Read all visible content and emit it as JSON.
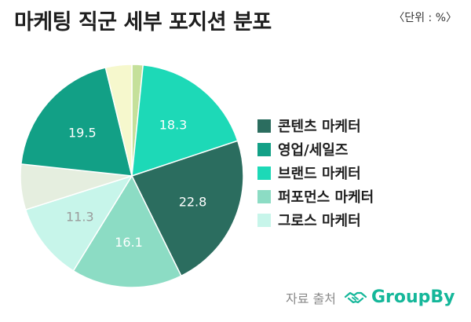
{
  "header": {
    "title": "마케팅 직군 세부 포지션 분포",
    "unit": "〈단위 : %〉"
  },
  "footer": {
    "source_label": "자료 출처",
    "brand_name": "GroupBy",
    "brand_icon": "handshake-icon",
    "brand_color": "#15b79a"
  },
  "chart_data": {
    "type": "pie",
    "start_angle": "top",
    "direction": "clockwise",
    "legend_position": "right",
    "legend": [
      "콘텐츠 마케터",
      "영업/세일즈",
      "브랜드 마케터",
      "퍼포먼스 마케터",
      "그로스 마케터"
    ],
    "slices": [
      {
        "category": "",
        "value": 1.6,
        "color": "#c5e09a",
        "label": ""
      },
      {
        "category": "브랜드 마케터",
        "value": 18.3,
        "color": "#1dd9b7",
        "label": "18.3"
      },
      {
        "category": "콘텐츠 마케터",
        "value": 22.8,
        "color": "#2b6d5f",
        "label": "22.8"
      },
      {
        "category": "퍼포먼스 마케터",
        "value": 16.1,
        "color": "#8cdcc4",
        "label": "16.1"
      },
      {
        "category": "그로스 마케터",
        "value": 11.3,
        "color": "#c7f5ea",
        "label": "11.3"
      },
      {
        "category": "",
        "value": 6.6,
        "color": "#e5eedf",
        "label": ""
      },
      {
        "category": "영업/세일즈",
        "value": 19.5,
        "color": "#12a086",
        "label": "19.5"
      },
      {
        "category": "",
        "value": 3.8,
        "color": "#f6f8cd",
        "label": ""
      }
    ],
    "legend_colors": [
      "#2b6d5f",
      "#12a086",
      "#1dd9b7",
      "#8cdcc4",
      "#c7f5ea"
    ],
    "label_colors": [
      "#ffffff",
      "#ffffff",
      "#ffffff",
      "#ffffff",
      "#9a9a9a",
      "#ffffff",
      "#ffffff",
      "#ffffff"
    ]
  }
}
